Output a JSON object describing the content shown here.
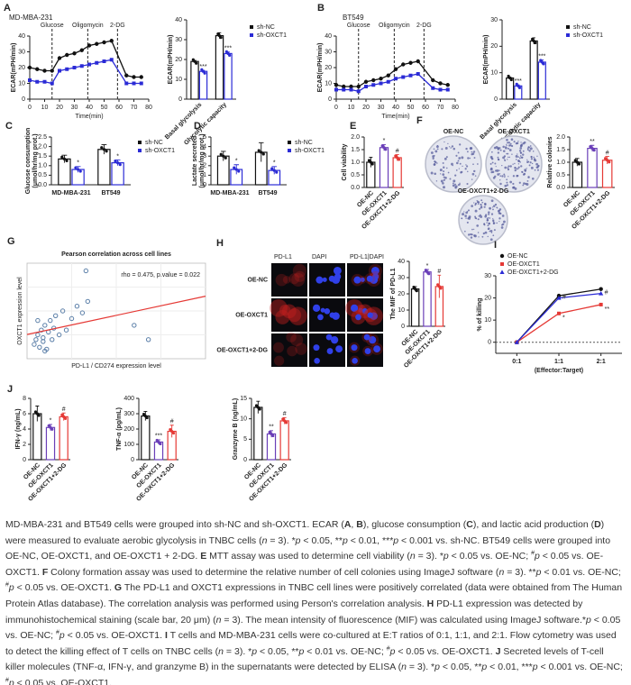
{
  "chart_data": [
    {
      "type": "line",
      "label": "A",
      "subtitle": "MD-MBA-231",
      "ylabel": "ECAR(mPH/min)",
      "xlabel": "Time(min)",
      "x": [
        0,
        5,
        10,
        15,
        20,
        25,
        30,
        35,
        40,
        45,
        50,
        55,
        65,
        70,
        75
      ],
      "xlim": [
        0,
        80
      ],
      "xticks": [
        0,
        10,
        20,
        30,
        40,
        50,
        60,
        70,
        80
      ],
      "ylim": [
        0,
        40
      ],
      "yticks": [
        0,
        10,
        20,
        30,
        40
      ],
      "events": [
        {
          "x": 15,
          "label": "Glucose"
        },
        {
          "x": 39,
          "label": "Oligomycin"
        },
        {
          "x": 59,
          "label": "2-DG"
        }
      ],
      "series": [
        {
          "color": "#111111",
          "marker": "circle",
          "values": [
            20,
            19,
            18,
            18,
            26,
            28,
            29,
            31,
            34,
            35,
            36,
            37,
            15,
            14,
            14
          ]
        },
        {
          "color": "#2b2bd6",
          "marker": "square",
          "values": [
            12,
            11,
            11,
            10,
            18,
            19,
            20,
            21,
            22,
            23,
            24,
            25,
            10,
            10,
            10
          ]
        }
      ]
    },
    {
      "type": "bar",
      "ylabel": "ECAR(mPH/min)",
      "categories": [
        "Basal glycolysis",
        "Glycolytic capacity"
      ],
      "rotate_labels": true,
      "ylim": [
        0,
        40
      ],
      "yticks": [
        0,
        10,
        20,
        30,
        40
      ],
      "series": [
        {
          "name": "sh-NC",
          "color": "#111111",
          "fill": "#ffffff",
          "values": [
            19,
            32
          ],
          "errors": [
            0.5,
            1.5
          ],
          "annotations": [
            null,
            null
          ]
        },
        {
          "name": "sh-OXCT1",
          "color": "#2b2bd6",
          "fill": "#ffffff",
          "values": [
            14,
            23
          ],
          "errors": [
            0.5,
            0.8
          ],
          "annotations": [
            "***",
            "***"
          ]
        }
      ]
    },
    {
      "type": "line",
      "label": "B",
      "subtitle": "BT549",
      "ylabel": "ECAR(mPH/min)",
      "xlabel": "Time(min)",
      "x": [
        0,
        5,
        10,
        15,
        20,
        25,
        30,
        35,
        40,
        45,
        50,
        55,
        65,
        70,
        75
      ],
      "xlim": [
        0,
        80
      ],
      "xticks": [
        0,
        10,
        20,
        30,
        40,
        50,
        60,
        70,
        80
      ],
      "ylim": [
        0,
        40
      ],
      "yticks": [
        0,
        10,
        20,
        30,
        40
      ],
      "events": [
        {
          "x": 15,
          "label": "Glucose"
        },
        {
          "x": 39,
          "label": "Oligomycin"
        },
        {
          "x": 59,
          "label": "2-DG"
        }
      ],
      "series": [
        {
          "color": "#111111",
          "marker": "circle",
          "values": [
            9,
            8,
            8,
            8,
            11,
            12,
            13,
            15,
            19,
            22,
            23,
            24,
            12,
            10,
            9
          ]
        },
        {
          "color": "#2b2bd6",
          "marker": "square",
          "values": [
            6,
            6,
            6,
            5,
            8,
            9,
            10,
            11,
            13,
            14,
            15,
            16,
            7,
            6,
            6
          ]
        }
      ]
    },
    {
      "type": "bar",
      "ylabel": "ECAR(mPH/min)",
      "categories": [
        "Basal glycolysis",
        "Glycolytic capacity"
      ],
      "rotate_labels": true,
      "ylim": [
        0,
        30
      ],
      "yticks": [
        0,
        10,
        20,
        30
      ],
      "series": [
        {
          "name": "sh-NC",
          "color": "#111111",
          "fill": "#ffffff",
          "values": [
            8,
            22
          ],
          "errors": [
            0.3,
            1.2
          ],
          "annotations": [
            null,
            null
          ]
        },
        {
          "name": "sh-OXCT1",
          "color": "#2b2bd6",
          "fill": "#ffffff",
          "values": [
            5,
            14
          ],
          "errors": [
            0.4,
            0.8
          ],
          "annotations": [
            "***",
            "***"
          ]
        }
      ]
    },
    {
      "type": "bar",
      "label": "C",
      "ylabel": "Glucose consumption\n(μmol/hr/mg prot.)",
      "categories": [
        "MD-MBA-231",
        "BT549"
      ],
      "ylim": [
        0,
        2.5
      ],
      "yticks": [
        {
          "value": 0,
          "label": "0.0"
        },
        0.5,
        {
          "value": 1,
          "label": "1.0"
        },
        1.5,
        {
          "value": 2,
          "label": "2.0"
        },
        2.5
      ],
      "series": [
        {
          "name": "sh-NC",
          "color": "#111111",
          "fill": "#ffffff",
          "values": [
            1.35,
            1.85
          ],
          "errors": [
            0.2,
            0.25
          ],
          "annotations": [
            null,
            null
          ]
        },
        {
          "name": "sh-OXCT1",
          "color": "#2b2bd6",
          "fill": "#ffffff",
          "values": [
            0.8,
            1.15
          ],
          "errors": [
            0.15,
            0.15
          ],
          "annotations": [
            "*",
            "*"
          ]
        }
      ]
    },
    {
      "type": "bar",
      "label": "D",
      "ylabel": "Lactate secreted\n(μmol/hr/mg prot.)",
      "categories": [
        "MD-MBA-231",
        "BT549"
      ],
      "ylim": [
        0,
        5
      ],
      "yticks": [
        0,
        1,
        2,
        3,
        4,
        5
      ],
      "series": [
        {
          "name": "sh-NC",
          "color": "#111111",
          "fill": "#ffffff",
          "values": [
            3.0,
            3.4
          ],
          "errors": [
            0.5,
            1.0
          ],
          "annotations": [
            null,
            null
          ]
        },
        {
          "name": "sh-OXCT1",
          "color": "#2b2bd6",
          "fill": "#ffffff",
          "values": [
            1.6,
            1.5
          ],
          "errors": [
            0.5,
            0.4
          ],
          "annotations": [
            "*",
            "*"
          ]
        }
      ]
    },
    {
      "type": "bar",
      "label": "E",
      "ylabel": "Cell viability",
      "categories": [
        "OE-NC",
        "OE-OXCT1",
        "OE-OXCT1+2-DG"
      ],
      "rotate_labels": true,
      "ylim": [
        0,
        2
      ],
      "yticks": [
        {
          "value": 0,
          "label": "0.0"
        },
        0.5,
        {
          "value": 1,
          "label": "1.0"
        },
        1.5,
        {
          "value": 2,
          "label": "2.0"
        }
      ],
      "series": [
        {
          "colors": [
            "#111111",
            "#6a3fb8",
            "#e53935"
          ],
          "fill": "#ffffff",
          "values": [
            1.0,
            1.58,
            1.18
          ],
          "errors": [
            0.2,
            0.12,
            0.12
          ],
          "annotations": [
            null,
            "*",
            "#"
          ]
        }
      ]
    },
    {
      "type": "images",
      "label": "F",
      "labels": [
        "OE-NC",
        "OE-OXCT1",
        "OE-OXCT1+2-DG"
      ]
    },
    {
      "type": "bar",
      "ylabel": "Relative  colonies",
      "categories": [
        "OE-NC",
        "OE-OXCT1",
        "OE-OXCT1+2-DG"
      ],
      "rotate_labels": true,
      "ylim": [
        0,
        2
      ],
      "yticks": [
        {
          "value": 0,
          "label": "0.0"
        },
        0.5,
        {
          "value": 1,
          "label": "1.0"
        },
        1.5,
        {
          "value": 2,
          "label": "2.0"
        }
      ],
      "series": [
        {
          "colors": [
            "#111111",
            "#6a3fb8",
            "#e53935"
          ],
          "fill": "#ffffff",
          "values": [
            1.0,
            1.55,
            1.08
          ],
          "errors": [
            0.15,
            0.12,
            0.15
          ],
          "annotations": [
            null,
            "**",
            "#"
          ]
        }
      ]
    },
    {
      "type": "scatter",
      "label": "G",
      "title": "Pearson correlation across cell lines",
      "annotation": "rho = 0.475,  p.value = 0.022",
      "xlabel": "PD-L1 / CD274 expression level",
      "ylabel": "OXCT1 expression level",
      "xlim": [
        0,
        100
      ],
      "ylim": [
        0,
        100
      ],
      "fit": true,
      "fit_color": "#e53935",
      "series": [
        {
          "color": "#5b7fa8",
          "x": [
            4,
            5,
            6,
            7,
            8,
            9,
            9,
            10,
            11,
            12,
            13,
            14,
            15,
            16,
            18,
            20,
            22,
            25,
            28,
            31,
            34,
            33,
            60,
            68,
            6,
            10
          ],
          "values": [
            15,
            20,
            25,
            12,
            30,
            18,
            22,
            35,
            10,
            28,
            40,
            20,
            32,
            45,
            25,
            50,
            30,
            42,
            55,
            48,
            60,
            92,
            35,
            20,
            40,
            8
          ]
        }
      ]
    },
    {
      "type": "micrographs",
      "label": "H",
      "columns": [
        "PD-L1",
        "DAPI",
        "PD-L1|DAPI"
      ],
      "rows": [
        "OE-NC",
        "OE-OXCT1",
        "OE-OXCT1+2-DG"
      ]
    },
    {
      "type": "bar",
      "ylabel": "The MIF of PD-L1",
      "categories": [
        "OE-NC",
        "OE-OXCT1",
        "OE-OXCT1+2-DG"
      ],
      "rotate_labels": true,
      "ylim": [
        0,
        40
      ],
      "yticks": [
        0,
        10,
        20,
        30,
        40
      ],
      "series": [
        {
          "colors": [
            "#111111",
            "#6a3fb8",
            "#e53935"
          ],
          "fill": "#ffffff",
          "values": [
            23,
            33.5,
            24.5
          ],
          "errors": [
            1.5,
            1.5,
            7
          ],
          "annotations": [
            null,
            "*",
            "#"
          ]
        }
      ]
    },
    {
      "type": "line",
      "label": "I",
      "ylabel": "% of killing",
      "xlabel": "(Effector:Target)",
      "categories": [
        "0:1",
        "1:1",
        "2:1"
      ],
      "ylim": [
        -5,
        30
      ],
      "yticks": [
        0,
        10,
        20,
        30
      ],
      "reference_line": 0,
      "series": [
        {
          "name": "OE-NC",
          "color": "#111111",
          "marker": "circle",
          "values": [
            0,
            21,
            24
          ],
          "annotations": [
            null,
            null,
            null
          ]
        },
        {
          "name": "OE-OXCT1",
          "color": "#e53935",
          "marker": "square",
          "values": [
            0,
            13,
            17
          ],
          "annotations": [
            null,
            "*",
            "**"
          ]
        },
        {
          "name": "OE-OXCT1+2-DG",
          "color": "#2b2bd6",
          "marker": "triangle",
          "values": [
            0,
            20,
            22
          ],
          "annotations": [
            null,
            "#",
            "#"
          ]
        }
      ]
    },
    {
      "type": "bar",
      "label": "J",
      "ylabel": "IFN-γ (ng/mL)",
      "categories": [
        "OE-NC",
        "OE-OXCT1",
        "OE-OXCT1+2-DG"
      ],
      "rotate_labels": true,
      "ylim": [
        0,
        8
      ],
      "yticks": [
        0,
        2,
        4,
        6,
        8
      ],
      "series": [
        {
          "colors": [
            "#111111",
            "#6a3fb8",
            "#e53935"
          ],
          "fill": "#ffffff",
          "values": [
            6.0,
            4.2,
            5.6
          ],
          "errors": [
            1.0,
            0.4,
            0.5
          ],
          "annotations": [
            null,
            "*",
            "#"
          ]
        }
      ]
    },
    {
      "type": "bar",
      "ylabel": "TNF-α (pg/mL)",
      "categories": [
        "OE-NC",
        "OE-OXCT1",
        "OE-OXCT1+2-DG"
      ],
      "rotate_labels": true,
      "ylim": [
        0,
        400
      ],
      "yticks": [
        0,
        100,
        200,
        300,
        400
      ],
      "series": [
        {
          "colors": [
            "#111111",
            "#6a3fb8",
            "#e53935"
          ],
          "fill": "#ffffff",
          "values": [
            285,
            115,
            185
          ],
          "errors": [
            30,
            15,
            40
          ],
          "annotations": [
            null,
            "***",
            "#"
          ]
        }
      ]
    },
    {
      "type": "bar",
      "ylabel": "Granzyme B (ng/mL)",
      "categories": [
        "OE-NC",
        "OE-OXCT1",
        "OE-OXCT1+2-DG"
      ],
      "rotate_labels": true,
      "ylim": [
        0,
        15
      ],
      "yticks": [
        0,
        5,
        10,
        15
      ],
      "series": [
        {
          "colors": [
            "#111111",
            "#6a3fb8",
            "#e53935"
          ],
          "fill": "#ffffff",
          "values": [
            12.8,
            6.3,
            9.5
          ],
          "errors": [
            1.5,
            0.8,
            0.8
          ],
          "annotations": [
            null,
            "**",
            "#"
          ]
        }
      ]
    }
  ],
  "caption": [
    "MD-MBA-231 and BT549 cells were grouped into sh-NC and sh-OXCT1. ECAR (",
    {
      "text": "A",
      "format": "bold"
    },
    ", ",
    {
      "text": "B",
      "format": "bold"
    },
    "), glucose consumption (",
    {
      "text": "C",
      "format": "bold"
    },
    "), and lactic acid production (",
    {
      "text": "D",
      "format": "bold"
    },
    ") were measured to evaluate aerobic glycolysis in TNBC cells (",
    {
      "text": "n",
      "format": "italic"
    },
    " = 3). *",
    {
      "text": "p",
      "format": "italic"
    },
    " < 0.05, **",
    {
      "text": "p",
      "format": "italic"
    },
    " < 0.01, ***",
    {
      "text": "p",
      "format": "italic"
    },
    " < 0.001 vs. sh-NC. BT549 cells were grouped into OE-NC, OE-OXCT1, and OE-OXCT1 + 2-DG. ",
    {
      "text": "E",
      "format": "bold"
    },
    " MTT assay was used to determine cell viability (",
    {
      "text": "n",
      "format": "italic"
    },
    " = 3). *",
    {
      "text": "p",
      "format": "italic"
    },
    " < 0.05 vs. OE-NC; ",
    {
      "text": "#",
      "format": "sup"
    },
    {
      "text": "p",
      "format": "italic"
    },
    " < 0.05 vs. OE-OXCT1. ",
    {
      "text": "F",
      "format": "bold"
    },
    " Colony formation assay was used to determine the relative number of cell colonies using ImageJ software (",
    {
      "text": "n",
      "format": "italic"
    },
    " = 3). **",
    {
      "text": "p",
      "format": "italic"
    },
    " < 0.01 vs. OE-NC; ",
    {
      "text": "#",
      "format": "sup"
    },
    {
      "text": "p",
      "format": "italic"
    },
    " < 0.05 vs. OE-OXCT1. ",
    {
      "text": "G",
      "format": "bold"
    },
    " The PD-L1 and OXCT1 expressions in TNBC cell lines were positively correlated (data were obtained from The Human Protein Atlas database). The correlation analysis was performed using Person's correlation analysis. ",
    {
      "text": "H",
      "format": "bold"
    },
    " PD-L1 expression was detected by immunohistochemical staining (scale bar, 20 μm) (",
    {
      "text": "n",
      "format": "italic"
    },
    " = 3). The mean intensity of fluorescence (MIF) was calculated using ImageJ software.*",
    {
      "text": "p",
      "format": "italic"
    },
    " < 0.05 vs. OE-NC; ",
    {
      "text": "#",
      "format": "sup"
    },
    {
      "text": "p",
      "format": "italic"
    },
    " < 0.05 vs. OE-OXCT1. ",
    {
      "text": "I",
      "format": "bold"
    },
    " T cells and MD-MBA-231 cells were co-cultured at E:T ratios of 0:1, 1:1, and 2:1. Flow cytometry was used to detect the killing effect of T cells on TNBC cells (",
    {
      "text": "n",
      "format": "italic"
    },
    " = 3). *",
    {
      "text": "p",
      "format": "italic"
    },
    " < 0.05, **",
    {
      "text": "p",
      "format": "italic"
    },
    " < 0.01 vs. OE-NC; ",
    {
      "text": "#",
      "format": "sup"
    },
    {
      "text": "p",
      "format": "italic"
    },
    " < 0.05 vs. OE-OXCT1. ",
    {
      "text": "J",
      "format": "bold"
    },
    " Secreted levels of T-cell killer molecules (TNF-α, IFN-γ, and granzyme B) in the supernatants were detected by ELISA (",
    {
      "text": "n",
      "format": "italic"
    },
    " = 3). *",
    {
      "text": "p",
      "format": "italic"
    },
    " < 0.05, **",
    {
      "text": "p",
      "format": "italic"
    },
    " < 0.01, ***",
    {
      "text": "p",
      "format": "italic"
    },
    " < 0.001 vs. OE-NC; ",
    {
      "text": "#",
      "format": "sup"
    },
    {
      "text": "p",
      "format": "italic"
    },
    " < 0.05 vs. OE-OXCT1."
  ]
}
